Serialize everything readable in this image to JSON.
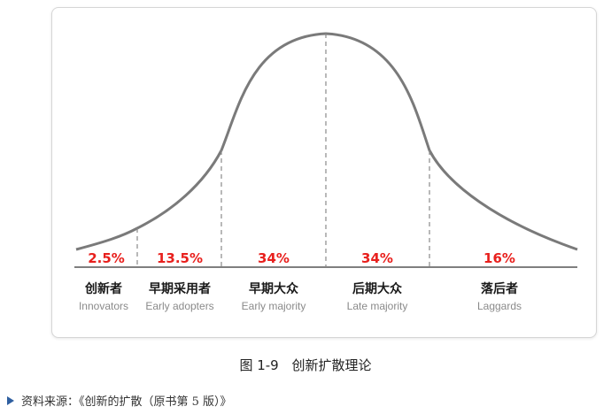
{
  "diagram": {
    "segments": [
      {
        "percent": "2.5%",
        "label_zh": "创新者",
        "label_en": "Innovators"
      },
      {
        "percent": "13.5%",
        "label_zh": "早期采用者",
        "label_en": "Early adopters"
      },
      {
        "percent": "34%",
        "label_zh": "早期大众",
        "label_en": "Early majority"
      },
      {
        "percent": "34%",
        "label_zh": "后期大众",
        "label_en": "Late majority"
      },
      {
        "percent": "16%",
        "label_zh": "落后者",
        "label_en": "Laggards"
      }
    ],
    "colors": {
      "curve": "#7a7a7a",
      "percent": "#e8201d",
      "axis": "#555555"
    }
  },
  "caption": {
    "number": "图 1-9",
    "title": "创新扩散理论"
  },
  "source": {
    "text": "资料来源：《创新的扩散（原书第 5 版）》"
  }
}
